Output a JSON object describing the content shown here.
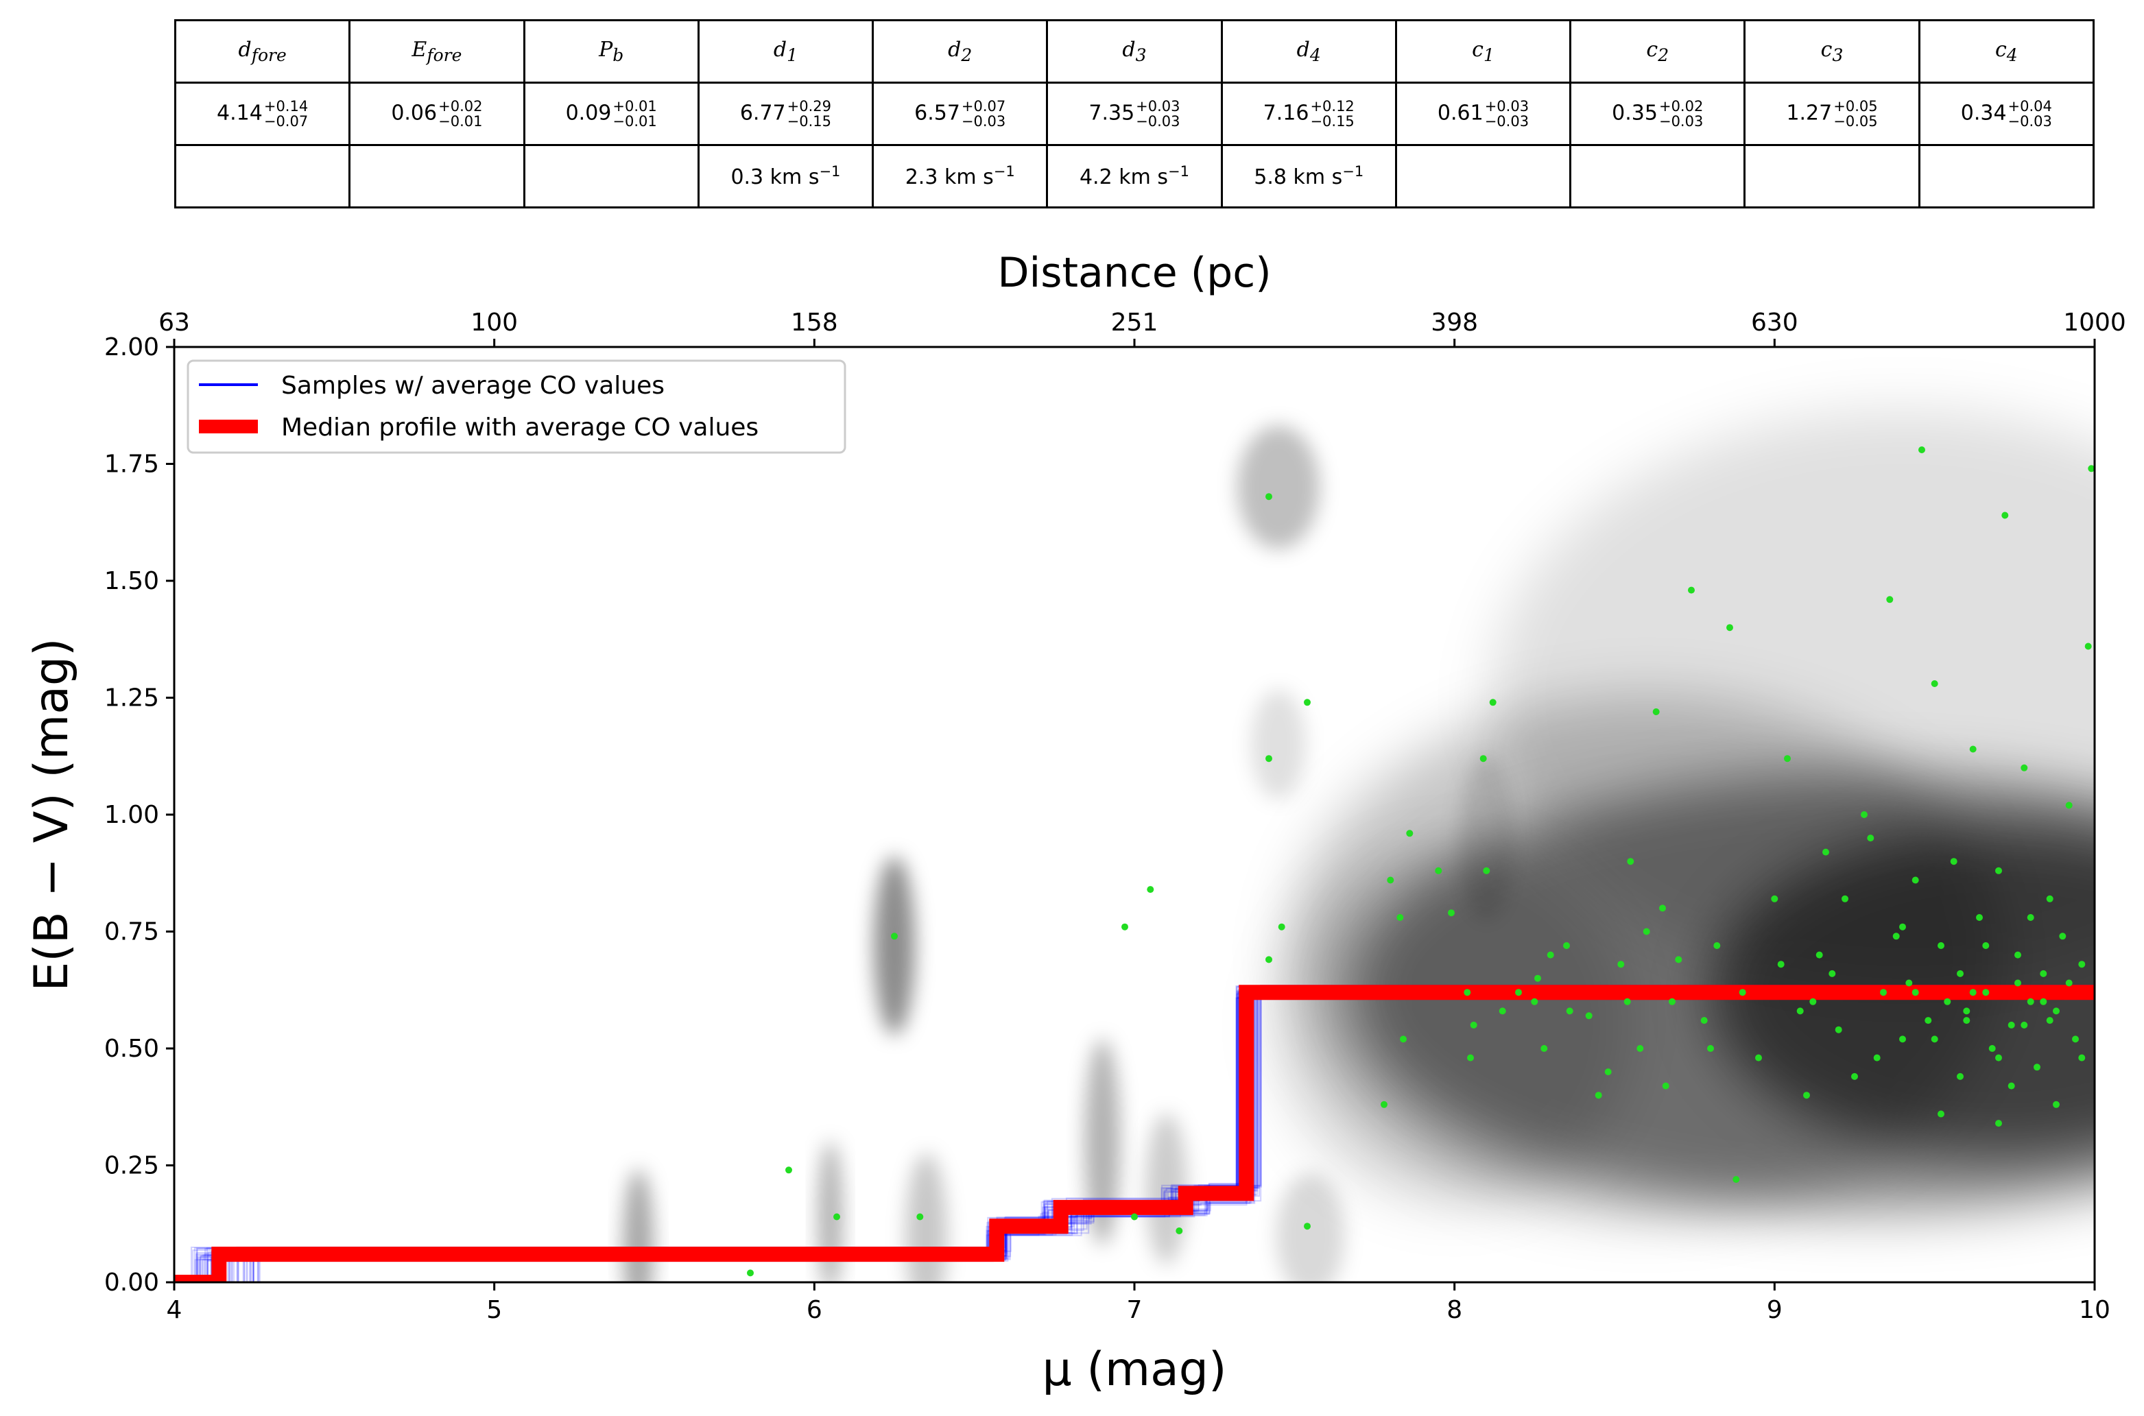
{
  "table": {
    "headers": [
      {
        "sym": "d",
        "sub": "fore"
      },
      {
        "sym": "E",
        "sub": "fore"
      },
      {
        "sym": "P",
        "sub": "b"
      },
      {
        "sym": "d",
        "sub": "1"
      },
      {
        "sym": "d",
        "sub": "2"
      },
      {
        "sym": "d",
        "sub": "3"
      },
      {
        "sym": "d",
        "sub": "4"
      },
      {
        "sym": "c",
        "sub": "1"
      },
      {
        "sym": "c",
        "sub": "2"
      },
      {
        "sym": "c",
        "sub": "3"
      },
      {
        "sym": "c",
        "sub": "4"
      }
    ],
    "values": [
      {
        "v": "4.14",
        "up": "+0.14",
        "dn": "−0.07"
      },
      {
        "v": "0.06",
        "up": "+0.02",
        "dn": "−0.01"
      },
      {
        "v": "0.09",
        "up": "+0.01",
        "dn": "−0.01"
      },
      {
        "v": "6.77",
        "up": "+0.29",
        "dn": "−0.15"
      },
      {
        "v": "6.57",
        "up": "+0.07",
        "dn": "−0.03"
      },
      {
        "v": "7.35",
        "up": "+0.03",
        "dn": "−0.03"
      },
      {
        "v": "7.16",
        "up": "+0.12",
        "dn": "−0.15"
      },
      {
        "v": "0.61",
        "up": "+0.03",
        "dn": "−0.03"
      },
      {
        "v": "0.35",
        "up": "+0.02",
        "dn": "−0.03"
      },
      {
        "v": "1.27",
        "up": "+0.05",
        "dn": "−0.05"
      },
      {
        "v": "0.34",
        "up": "+0.04",
        "dn": "−0.03"
      }
    ],
    "velocities": [
      {
        "num": "",
        "exp": ""
      },
      {
        "num": "",
        "exp": ""
      },
      {
        "num": "",
        "exp": ""
      },
      {
        "num": "0.3 km s",
        "exp": "−1"
      },
      {
        "num": "2.3 km s",
        "exp": "−1"
      },
      {
        "num": "4.2 km s",
        "exp": "−1"
      },
      {
        "num": "5.8 km s",
        "exp": "−1"
      },
      {
        "num": "",
        "exp": ""
      },
      {
        "num": "",
        "exp": ""
      },
      {
        "num": "",
        "exp": ""
      },
      {
        "num": "",
        "exp": ""
      }
    ]
  },
  "chart_data": {
    "type": "scatter",
    "xlabel": "μ (mag)",
    "ylabel": "E(B − V) (mag)",
    "top_xlabel": "Distance (pc)",
    "xlim": [
      4,
      10
    ],
    "ylim": [
      0,
      2
    ],
    "x_ticks": [
      "4",
      "5",
      "6",
      "7",
      "8",
      "9",
      "10"
    ],
    "y_ticks": [
      "0.00",
      "0.25",
      "0.50",
      "0.75",
      "1.00",
      "1.25",
      "1.50",
      "1.75",
      "2.00"
    ],
    "top_ticks": [
      {
        "mu": 4,
        "label": "63"
      },
      {
        "mu": 5,
        "label": "100"
      },
      {
        "mu": 6,
        "label": "158"
      },
      {
        "mu": 7,
        "label": "251"
      },
      {
        "mu": 8,
        "label": "398"
      },
      {
        "mu": 9,
        "label": "630"
      },
      {
        "mu": 10,
        "label": "1000"
      }
    ],
    "legend_position": "upper-left",
    "legend": [
      {
        "label": "Samples  w/ average CO values",
        "color": "#0000ff"
      },
      {
        "label": "Median profile with average CO values",
        "color": "#ff0000"
      }
    ],
    "colors": {
      "samples": "#0000ff",
      "median": "#ff0000",
      "stars": "#22dd22",
      "density": "#000000"
    },
    "median_profile": {
      "mu": [
        4.0,
        4.14,
        4.14,
        6.57,
        6.57,
        6.77,
        6.77,
        7.16,
        7.16,
        7.35,
        7.35,
        10.0
      ],
      "ebv": [
        0.0,
        0.0,
        0.06,
        0.06,
        0.12,
        0.12,
        0.16,
        0.16,
        0.19,
        0.19,
        0.62,
        0.62
      ]
    },
    "stars": [
      [
        5.8,
        0.02
      ],
      [
        5.92,
        0.24
      ],
      [
        6.07,
        0.14
      ],
      [
        6.25,
        0.74
      ],
      [
        6.33,
        0.14
      ],
      [
        7.0,
        0.14
      ],
      [
        7.14,
        0.11
      ],
      [
        7.42,
        1.68
      ],
      [
        7.42,
        1.12
      ],
      [
        7.54,
        1.24
      ],
      [
        7.46,
        0.76
      ],
      [
        7.42,
        0.69
      ],
      [
        6.97,
        0.76
      ],
      [
        7.05,
        0.84
      ],
      [
        7.54,
        0.12
      ],
      [
        7.8,
        0.86
      ],
      [
        7.78,
        0.38
      ],
      [
        7.83,
        0.78
      ],
      [
        7.86,
        0.96
      ],
      [
        7.95,
        0.88
      ],
      [
        7.99,
        0.79
      ],
      [
        7.84,
        0.52
      ],
      [
        8.04,
        0.62
      ],
      [
        8.06,
        0.55
      ],
      [
        8.05,
        0.48
      ],
      [
        8.09,
        1.12
      ],
      [
        8.12,
        1.24
      ],
      [
        8.15,
        0.58
      ],
      [
        8.2,
        0.62
      ],
      [
        8.26,
        0.65
      ],
      [
        8.28,
        0.5
      ],
      [
        8.3,
        0.7
      ],
      [
        8.36,
        0.58
      ],
      [
        8.42,
        0.57
      ],
      [
        8.48,
        0.45
      ],
      [
        8.52,
        0.68
      ],
      [
        8.54,
        0.6
      ],
      [
        8.58,
        0.5
      ],
      [
        8.6,
        0.75
      ],
      [
        8.63,
        1.22
      ],
      [
        8.65,
        0.8
      ],
      [
        8.66,
        0.42
      ],
      [
        8.7,
        0.69
      ],
      [
        8.74,
        1.48
      ],
      [
        8.78,
        0.56
      ],
      [
        8.82,
        0.72
      ],
      [
        8.86,
        1.4
      ],
      [
        8.88,
        0.22
      ],
      [
        8.9,
        0.62
      ],
      [
        8.95,
        0.48
      ],
      [
        9.02,
        0.68
      ],
      [
        9.04,
        1.12
      ],
      [
        9.08,
        0.58
      ],
      [
        9.12,
        0.6
      ],
      [
        9.14,
        0.7
      ],
      [
        9.18,
        0.66
      ],
      [
        9.2,
        0.54
      ],
      [
        9.22,
        0.82
      ],
      [
        9.25,
        0.44
      ],
      [
        9.28,
        1.0
      ],
      [
        9.3,
        0.95
      ],
      [
        9.34,
        0.62
      ],
      [
        9.36,
        1.46
      ],
      [
        9.38,
        0.74
      ],
      [
        9.4,
        0.52
      ],
      [
        9.42,
        0.64
      ],
      [
        9.44,
        0.86
      ],
      [
        9.46,
        1.78
      ],
      [
        9.48,
        0.56
      ],
      [
        9.5,
        1.28
      ],
      [
        9.52,
        0.72
      ],
      [
        9.54,
        0.6
      ],
      [
        9.56,
        0.9
      ],
      [
        9.58,
        0.66
      ],
      [
        9.6,
        0.58
      ],
      [
        9.62,
        1.14
      ],
      [
        9.64,
        0.78
      ],
      [
        9.66,
        0.62
      ],
      [
        9.68,
        0.5
      ],
      [
        9.7,
        0.88
      ],
      [
        9.72,
        1.64
      ],
      [
        9.74,
        0.55
      ],
      [
        9.76,
        0.7
      ],
      [
        9.78,
        1.1
      ],
      [
        9.8,
        0.6
      ],
      [
        9.82,
        0.46
      ],
      [
        9.84,
        0.66
      ],
      [
        9.86,
        0.82
      ],
      [
        9.88,
        0.58
      ],
      [
        9.9,
        0.74
      ],
      [
        9.92,
        1.02
      ],
      [
        9.94,
        0.52
      ],
      [
        9.96,
        0.68
      ],
      [
        9.98,
        1.36
      ],
      [
        9.99,
        1.74
      ],
      [
        8.1,
        0.88
      ],
      [
        8.25,
        0.6
      ],
      [
        8.35,
        0.72
      ],
      [
        8.45,
        0.4
      ],
      [
        8.55,
        0.9
      ],
      [
        8.68,
        0.6
      ],
      [
        8.8,
        0.5
      ],
      [
        9.0,
        0.82
      ],
      [
        9.1,
        0.4
      ],
      [
        9.16,
        0.92
      ],
      [
        9.32,
        0.48
      ],
      [
        9.4,
        0.76
      ],
      [
        9.5,
        0.52
      ],
      [
        9.58,
        0.44
      ],
      [
        9.66,
        0.72
      ],
      [
        9.74,
        0.42
      ],
      [
        9.8,
        0.78
      ],
      [
        9.86,
        0.56
      ],
      [
        9.92,
        0.64
      ],
      [
        9.96,
        0.48
      ],
      [
        9.52,
        0.36
      ],
      [
        9.7,
        0.34
      ],
      [
        9.88,
        0.38
      ],
      [
        9.44,
        0.62
      ],
      [
        9.62,
        0.62
      ],
      [
        9.78,
        0.55
      ],
      [
        9.84,
        0.6
      ],
      [
        9.6,
        0.56
      ],
      [
        9.7,
        0.48
      ],
      [
        9.76,
        0.64
      ]
    ]
  }
}
